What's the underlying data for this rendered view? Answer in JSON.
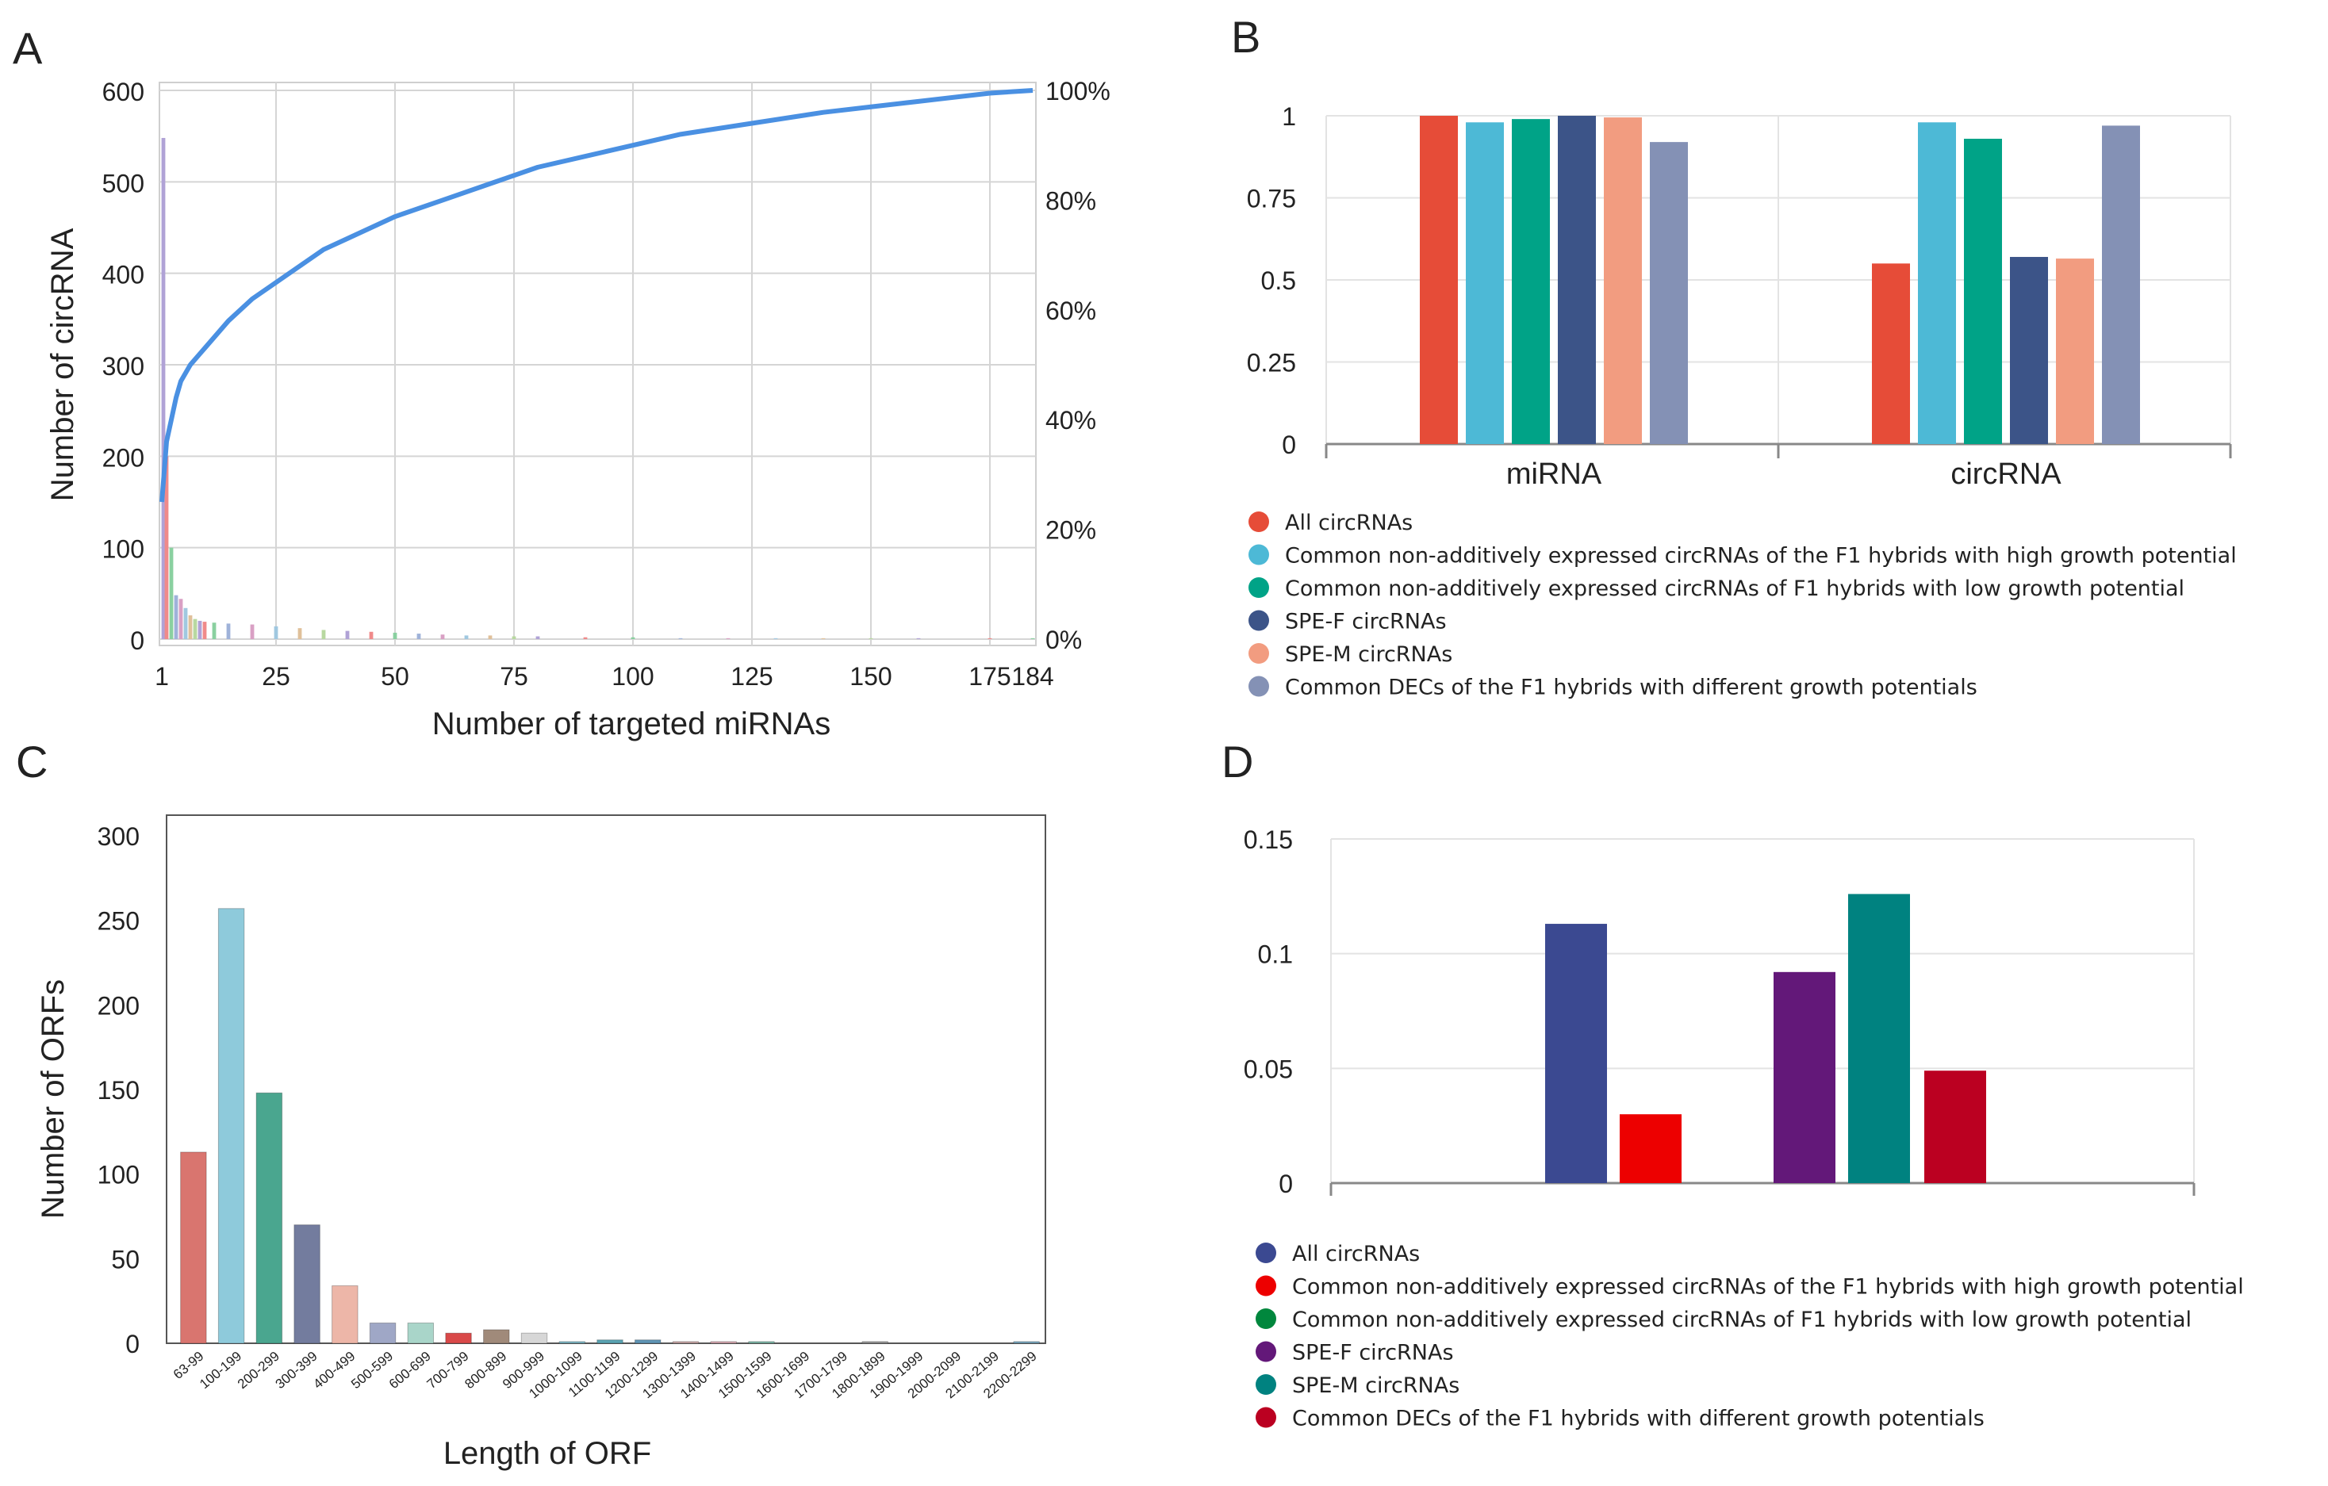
{
  "chart_data": [
    {
      "panel": "A",
      "type": "bar",
      "xlabel": "Number of targeted miRNAs",
      "ylabel": "Number of circRNA",
      "ylim": [
        0,
        600
      ],
      "y_ticks": [
        "0",
        "100",
        "200",
        "300",
        "400",
        "500",
        "600"
      ],
      "x_ticks": [
        "1",
        "25",
        "50",
        "75",
        "100",
        "125",
        "150",
        "175",
        "184"
      ],
      "y2_ticks": [
        "0%",
        "20%",
        "40%",
        "60%",
        "80%",
        "100%"
      ],
      "bar_colors": [
        "#b0a2d6",
        "#f08a8a",
        "#8ad0a0",
        "#9fb2d9",
        "#d9a0c4",
        "#a0c8e0",
        "#e0c09a",
        "#b8d8a0"
      ],
      "bars": [
        {
          "x": 1,
          "y": 548
        },
        {
          "x": 2,
          "y": 200
        },
        {
          "x": 3,
          "y": 100
        },
        {
          "x": 4,
          "y": 48
        },
        {
          "x": 5,
          "y": 44
        },
        {
          "x": 6,
          "y": 34
        },
        {
          "x": 7,
          "y": 26
        },
        {
          "x": 8,
          "y": 22
        },
        {
          "x": 9,
          "y": 20
        },
        {
          "x": 10,
          "y": 19
        },
        {
          "x": 12,
          "y": 18
        },
        {
          "x": 15,
          "y": 17
        },
        {
          "x": 20,
          "y": 16
        },
        {
          "x": 25,
          "y": 14
        },
        {
          "x": 30,
          "y": 12
        },
        {
          "x": 35,
          "y": 10
        },
        {
          "x": 40,
          "y": 9
        },
        {
          "x": 45,
          "y": 8
        },
        {
          "x": 50,
          "y": 7
        },
        {
          "x": 55,
          "y": 6
        },
        {
          "x": 60,
          "y": 5
        },
        {
          "x": 65,
          "y": 4
        },
        {
          "x": 70,
          "y": 4
        },
        {
          "x": 75,
          "y": 3
        },
        {
          "x": 80,
          "y": 3
        },
        {
          "x": 90,
          "y": 2
        },
        {
          "x": 100,
          "y": 2
        },
        {
          "x": 110,
          "y": 1
        },
        {
          "x": 120,
          "y": 1
        },
        {
          "x": 130,
          "y": 1
        },
        {
          "x": 140,
          "y": 1
        },
        {
          "x": 150,
          "y": 1
        },
        {
          "x": 160,
          "y": 1
        },
        {
          "x": 175,
          "y": 1
        },
        {
          "x": 184,
          "y": 1
        }
      ],
      "cumulative_line": {
        "color": "#4a90e2",
        "x": [
          1,
          2,
          3,
          4,
          5,
          7,
          10,
          15,
          20,
          25,
          30,
          35,
          40,
          50,
          60,
          70,
          80,
          90,
          100,
          110,
          125,
          140,
          150,
          160,
          175,
          184
        ],
        "y_percent": [
          25,
          36,
          40,
          44,
          47,
          50,
          53,
          58,
          62,
          65,
          68,
          71,
          73,
          77,
          80,
          83,
          86,
          88,
          90,
          92,
          94,
          96,
          97,
          98,
          99.5,
          100
        ]
      }
    },
    {
      "panel": "B",
      "type": "bar",
      "ylim": [
        0,
        1
      ],
      "y_ticks": [
        "0",
        "0.25",
        "0.5",
        "0.75",
        "1"
      ],
      "categories": [
        "miRNA",
        "circRNA"
      ],
      "series": [
        {
          "name": "All circRNAs",
          "color": "#e64c38",
          "values": [
            1.0,
            0.55
          ]
        },
        {
          "name": "Common non-additively expressed circRNAs of the F1 hybrids with high growth potential",
          "color": "#4db9d6",
          "values": [
            0.98,
            0.98
          ]
        },
        {
          "name": "Common non-additively expressed circRNAs of F1 hybrids with low growth potential",
          "color": "#00a387",
          "values": [
            0.99,
            0.93
          ]
        },
        {
          "name": "SPE-F circRNAs",
          "color": "#3c5488",
          "values": [
            1.0,
            0.57
          ]
        },
        {
          "name": "SPE-M circRNAs",
          "color": "#f29c80",
          "values": [
            0.995,
            0.565
          ]
        },
        {
          "name": "Common DECs of the F1 hybrids with different growth potentials",
          "color": "#8491b5",
          "values": [
            0.92,
            0.97
          ]
        }
      ]
    },
    {
      "panel": "C",
      "type": "bar",
      "xlabel": "Length of ORF",
      "ylabel": "Number of ORFs",
      "ylim": [
        0,
        300
      ],
      "y_ticks": [
        "0",
        "50",
        "100",
        "150",
        "200",
        "250",
        "300"
      ],
      "categories": [
        "63-99",
        "100-199",
        "200-299",
        "300-399",
        "400-499",
        "500-599",
        "600-699",
        "700-799",
        "800-899",
        "900-999",
        "1000-1099",
        "1100-1199",
        "1200-1299",
        "1300-1399",
        "1400-1499",
        "1500-1599",
        "1600-1699",
        "1700-1799",
        "1800-1899",
        "1900-1999",
        "2000-2099",
        "2100-2199",
        "2200-2299"
      ],
      "values": [
        113,
        257,
        148,
        70,
        34,
        12,
        12,
        6,
        8,
        6,
        1,
        2,
        2,
        1,
        1,
        1,
        0,
        0,
        1,
        0,
        0,
        0,
        1
      ],
      "colors": [
        "#d9756f",
        "#8ecadb",
        "#4aa68f",
        "#737c9e",
        "#edb6a8",
        "#9fa7c6",
        "#a9d5c9",
        "#d94949",
        "#a08a7a",
        "#d7d7d7",
        "#7fb8c7",
        "#5aa3b2",
        "#5f95b5",
        "#c9a7a7",
        "#d8aab3",
        "#7fb8a9",
        "#cccccc",
        "#cccccc",
        "#9a9a9a",
        "#cccccc",
        "#cccccc",
        "#cccccc",
        "#7aa8c0"
      ]
    },
    {
      "panel": "D",
      "type": "bar",
      "ylim": [
        0,
        0.15
      ],
      "y_ticks": [
        "0",
        "0.05",
        "0.1",
        "0.15"
      ],
      "series": [
        {
          "name": "All circRNAs",
          "color": "#3b4991",
          "value": 0.113
        },
        {
          "name": "Common non-additively expressed circRNAs of the F1 hybrids with high growth potential",
          "color": "#ed0000",
          "value": 0.03
        },
        {
          "name": "Common non-additively expressed circRNAs of F1 hybrids with low growth potential",
          "color": "#00873d",
          "value": 0.0
        },
        {
          "name": "SPE-F circRNAs",
          "color": "#631879",
          "value": 0.092
        },
        {
          "name": "SPE-M circRNAs",
          "color": "#008280",
          "value": 0.126
        },
        {
          "name": "Common DECs of the F1 hybrids with different growth potentials",
          "color": "#bb0021",
          "value": 0.049
        }
      ]
    }
  ],
  "panels": {
    "a": {
      "letter": "A"
    },
    "b": {
      "letter": "B"
    },
    "c": {
      "letter": "C"
    },
    "d": {
      "letter": "D"
    }
  }
}
